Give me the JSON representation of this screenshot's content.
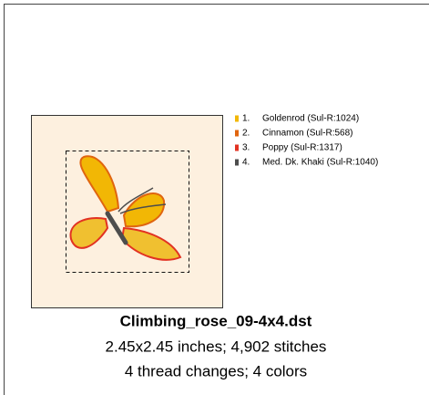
{
  "threads": [
    {
      "number": "1.",
      "name": "Goldenrod (Sul-R:1024)",
      "color": "#f2b705"
    },
    {
      "number": "2.",
      "name": "Cinnamon (Sul-R:568)",
      "color": "#e0650f"
    },
    {
      "number": "3.",
      "name": "Poppy (Sul-R:1317)",
      "color": "#e23222"
    },
    {
      "number": "4.",
      "name": "Med. Dk. Khaki (Sul-R:1040)",
      "color": "#4d4d4d"
    }
  ],
  "design": {
    "filename": "Climbing_rose_09-4x4.dst",
    "dimensions": "2.45x2.45 inches; 4,902 stitches",
    "summary": "4 thread changes; 4 colors"
  }
}
